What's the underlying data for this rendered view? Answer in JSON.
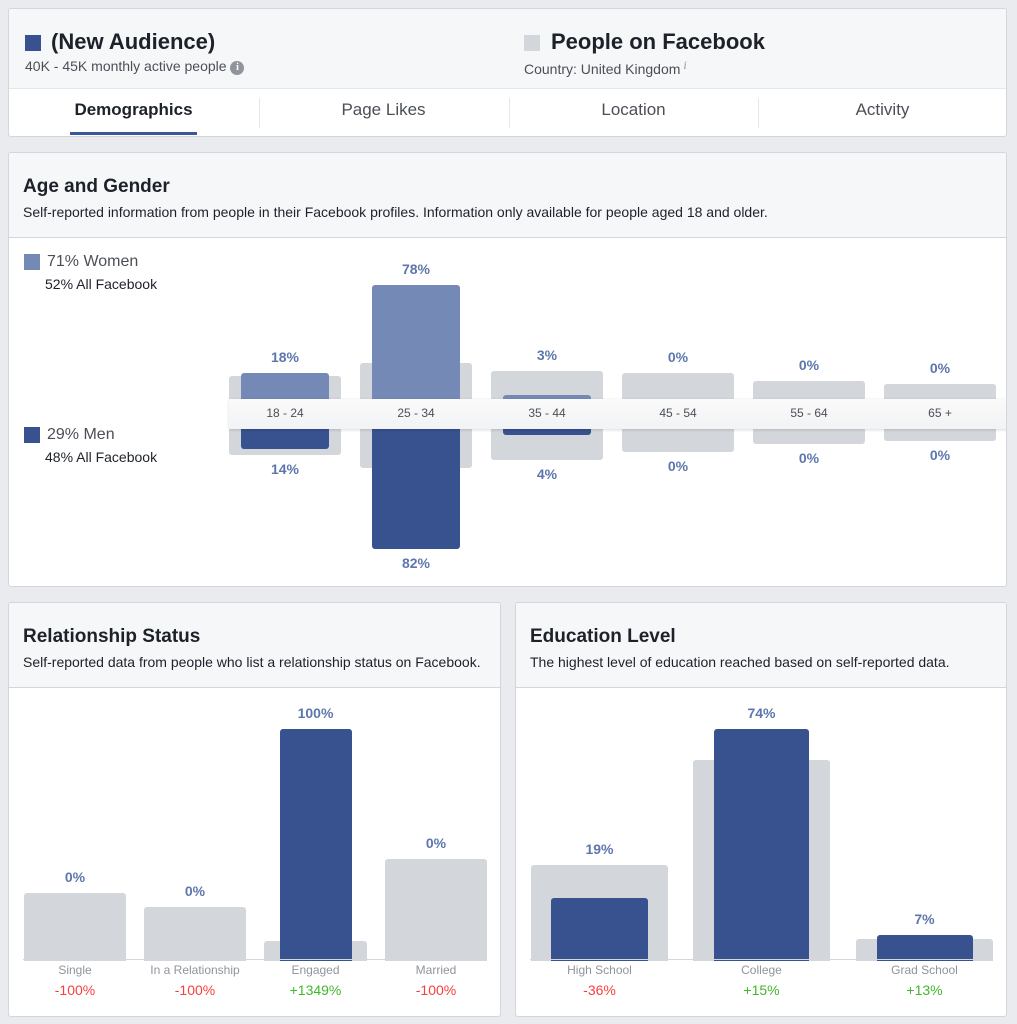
{
  "header": {
    "audience": {
      "title": "(New Audience)",
      "subtitle": "40K - 45K monthly active people",
      "info": "i",
      "color": "#37528e"
    },
    "comparison": {
      "title": "People on Facebook",
      "subtitle": "Country: United Kingdom",
      "info": "i",
      "color": "#d3d6db"
    },
    "tabs": [
      {
        "label": "Demographics",
        "active": true
      },
      {
        "label": "Page Likes"
      },
      {
        "label": "Location"
      },
      {
        "label": "Activity"
      }
    ]
  },
  "age_gender": {
    "title": "Age and Gender",
    "subtitle": "Self-reported information from people in their Facebook profiles. Information only available for people aged 18 and older.",
    "women": {
      "label": "71% Women",
      "sub": "52% All Facebook"
    },
    "men": {
      "label": "29% Men",
      "sub": "48% All Facebook"
    }
  },
  "relationship": {
    "title": "Relationship Status",
    "subtitle": "Self-reported data from people who list a relationship status on Facebook."
  },
  "education": {
    "title": "Education Level",
    "subtitle": "The highest level of education reached based on self-reported data."
  },
  "chart_data": [
    {
      "type": "bar",
      "title": "Age and Gender",
      "categories": [
        "18 - 24",
        "25 - 34",
        "35 - 44",
        "45 - 54",
        "55 - 64",
        "65 +"
      ],
      "series": [
        {
          "name": "Women",
          "values": [
            18,
            78,
            3,
            0,
            0,
            0
          ],
          "labels": [
            "18%",
            "78%",
            "3%",
            "0%",
            "0%",
            "0%"
          ],
          "color": "#7589b6"
        },
        {
          "name": "Men",
          "values": [
            14,
            82,
            4,
            0,
            0,
            0
          ],
          "labels": [
            "14%",
            "82%",
            "4%",
            "0%",
            "0%",
            "0%"
          ],
          "color": "#37528e"
        },
        {
          "name": "Women All Facebook",
          "values": [
            16,
            25,
            19,
            18,
            12,
            10
          ],
          "color": "#d3d6db"
        },
        {
          "name": "Men All Facebook",
          "values": [
            18,
            27,
            21,
            16,
            10,
            8
          ],
          "color": "#d3d6db"
        }
      ]
    },
    {
      "type": "bar",
      "title": "Relationship Status",
      "categories": [
        "Single",
        "In a Relationship",
        "Engaged",
        "Married"
      ],
      "series": [
        {
          "name": "Audience",
          "values": [
            0,
            0,
            100,
            0
          ],
          "labels": [
            "0%",
            "0%",
            "100%",
            "0%"
          ],
          "color": "#37528e"
        },
        {
          "name": "All Facebook",
          "values": [
            28,
            22,
            7,
            43
          ],
          "color": "#d3d6db"
        }
      ],
      "changes": [
        "-100%",
        "-100%",
        "+1349%",
        "-100%"
      ]
    },
    {
      "type": "bar",
      "title": "Education Level",
      "categories": [
        "High School",
        "College",
        "Grad School"
      ],
      "series": [
        {
          "name": "Audience",
          "values": [
            19,
            74,
            7
          ],
          "labels": [
            "19%",
            "74%",
            "7%"
          ],
          "color": "#37528e"
        },
        {
          "name": "All Facebook",
          "values": [
            30,
            64,
            6
          ],
          "color": "#d3d6db"
        }
      ],
      "changes": [
        "-36%",
        "+15%",
        "+13%"
      ]
    }
  ],
  "colors": {
    "positive": "#42b72a",
    "negative": "#fa3e3e"
  }
}
